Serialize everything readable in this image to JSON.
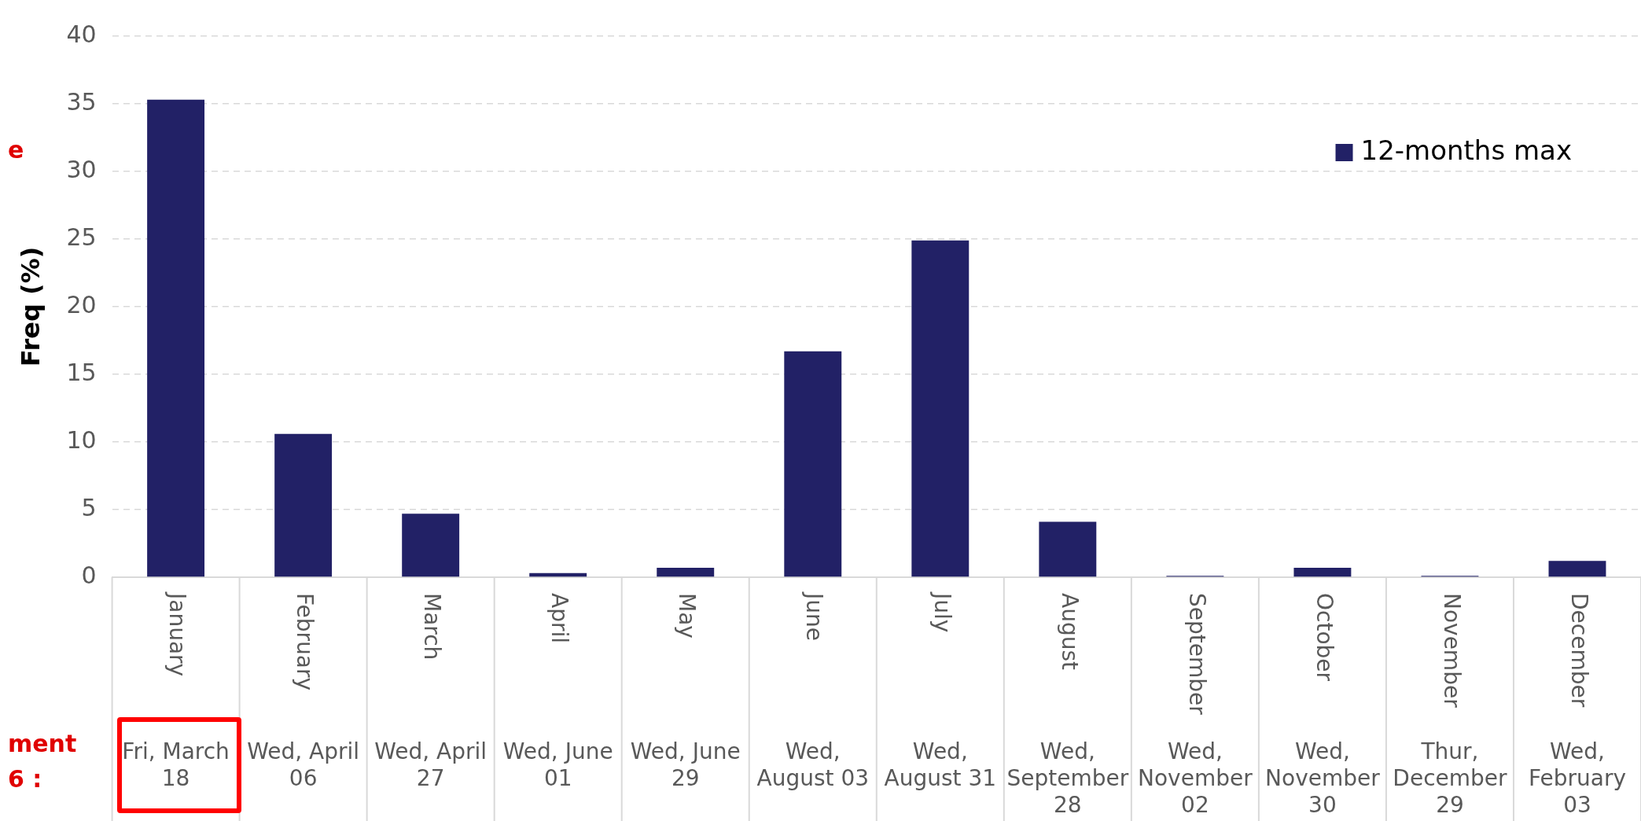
{
  "chart_data": {
    "type": "bar",
    "ylabel": "Freq (%)",
    "categories": [
      "January",
      "February",
      "March",
      "April",
      "May",
      "June",
      "July",
      "August",
      "September",
      "October",
      "November",
      "December"
    ],
    "series": [
      {
        "name": "12-months max",
        "color": "#222166",
        "values": [
          35.3,
          10.6,
          4.7,
          0.3,
          0.7,
          16.7,
          24.9,
          4.1,
          0.1,
          0.7,
          0.1,
          1.2
        ]
      }
    ],
    "ylim": [
      0,
      40
    ],
    "yticks": [
      0,
      5,
      10,
      15,
      20,
      25,
      30,
      35,
      40
    ],
    "grid": "y",
    "legend": "top right",
    "annotations": [
      "Fri, March 18",
      "Wed, April 06",
      "Wed, April 27",
      "Wed, June 01",
      "Wed, June 29",
      "Wed, August 03",
      "Wed, August 31",
      "Wed, September 28",
      "Wed, November 02",
      "Wed, November 30",
      "Thur, December 29",
      "Wed, February 03",
      "e",
      "ment",
      "6 :"
    ]
  }
}
